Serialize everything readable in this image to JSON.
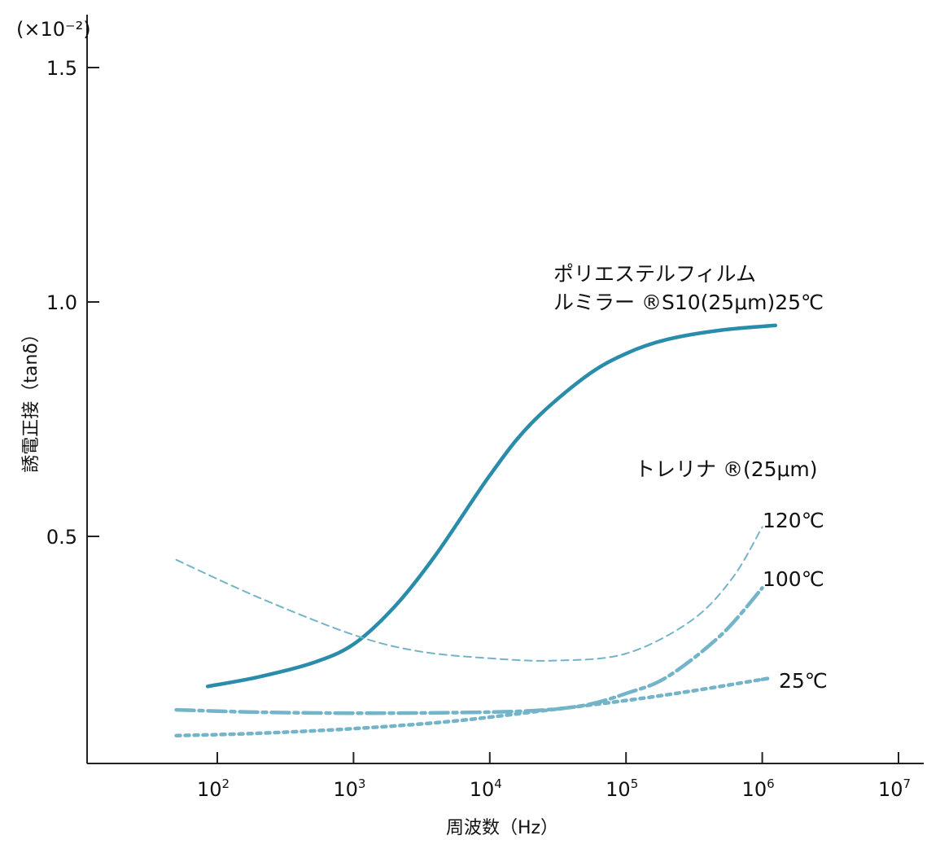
{
  "chart_data": {
    "type": "line",
    "xscale": "log",
    "xlabel": "周波数（Hz）",
    "ylabel": "誘電正接（tanδ）",
    "y_multiplier": "(×10⁻²)",
    "xlim": [
      10,
      10000000
    ],
    "ylim": [
      0.03,
      1.63
    ],
    "x_ticks": [
      {
        "base": "10",
        "exp": "2",
        "value": 100
      },
      {
        "base": "10",
        "exp": "3",
        "value": 1000
      },
      {
        "base": "10",
        "exp": "4",
        "value": 10000
      },
      {
        "base": "10",
        "exp": "5",
        "value": 100000
      },
      {
        "base": "10",
        "exp": "6",
        "value": 1000000
      },
      {
        "base": "10",
        "exp": "7",
        "value": 10000000
      }
    ],
    "y_ticks": [
      {
        "label": "0.5",
        "value": 0.5
      },
      {
        "label": "1.0",
        "value": 1.0
      },
      {
        "label": "1.5",
        "value": 1.5
      }
    ],
    "annotations": {
      "polyester_line1": "ポリエステルフィルム",
      "polyester_line2": "ルミラー ®S10(25μm)25℃",
      "torelina": "トレリナ ®(25μm)",
      "t120": "120℃",
      "t100": "100℃",
      "t25": "25℃"
    },
    "series": [
      {
        "color": "#2a8cab",
        "x": [
          85,
          200,
          500,
          1000,
          2000,
          4000,
          10000,
          20000,
          50000,
          100000,
          200000,
          500000,
          1250000
        ],
        "y": [
          0.18,
          0.2,
          0.23,
          0.27,
          0.35,
          0.46,
          0.63,
          0.74,
          0.84,
          0.89,
          0.92,
          0.94,
          0.95
        ]
      },
      {
        "color": "#74b4c9",
        "x": [
          50,
          200,
          1000,
          3000,
          10000,
          30000,
          100000,
          300000,
          600000,
          1000000
        ],
        "y": [
          0.45,
          0.37,
          0.29,
          0.255,
          0.24,
          0.235,
          0.25,
          0.32,
          0.41,
          0.52
        ]
      },
      {
        "color": "#74b4c9",
        "x": [
          50,
          200,
          1000,
          5000,
          20000,
          50000,
          100000,
          200000,
          500000,
          1000000
        ],
        "y": [
          0.13,
          0.125,
          0.123,
          0.124,
          0.128,
          0.14,
          0.165,
          0.2,
          0.29,
          0.39
        ]
      },
      {
        "color": "#74b4c9",
        "x": [
          50,
          200,
          1000,
          5000,
          20000,
          100000,
          300000,
          1000000,
          1000000
        ],
        "y": [
          0.075,
          0.08,
          0.09,
          0.105,
          0.125,
          0.15,
          0.17,
          0.195,
          0.195
        ]
      }
    ]
  }
}
